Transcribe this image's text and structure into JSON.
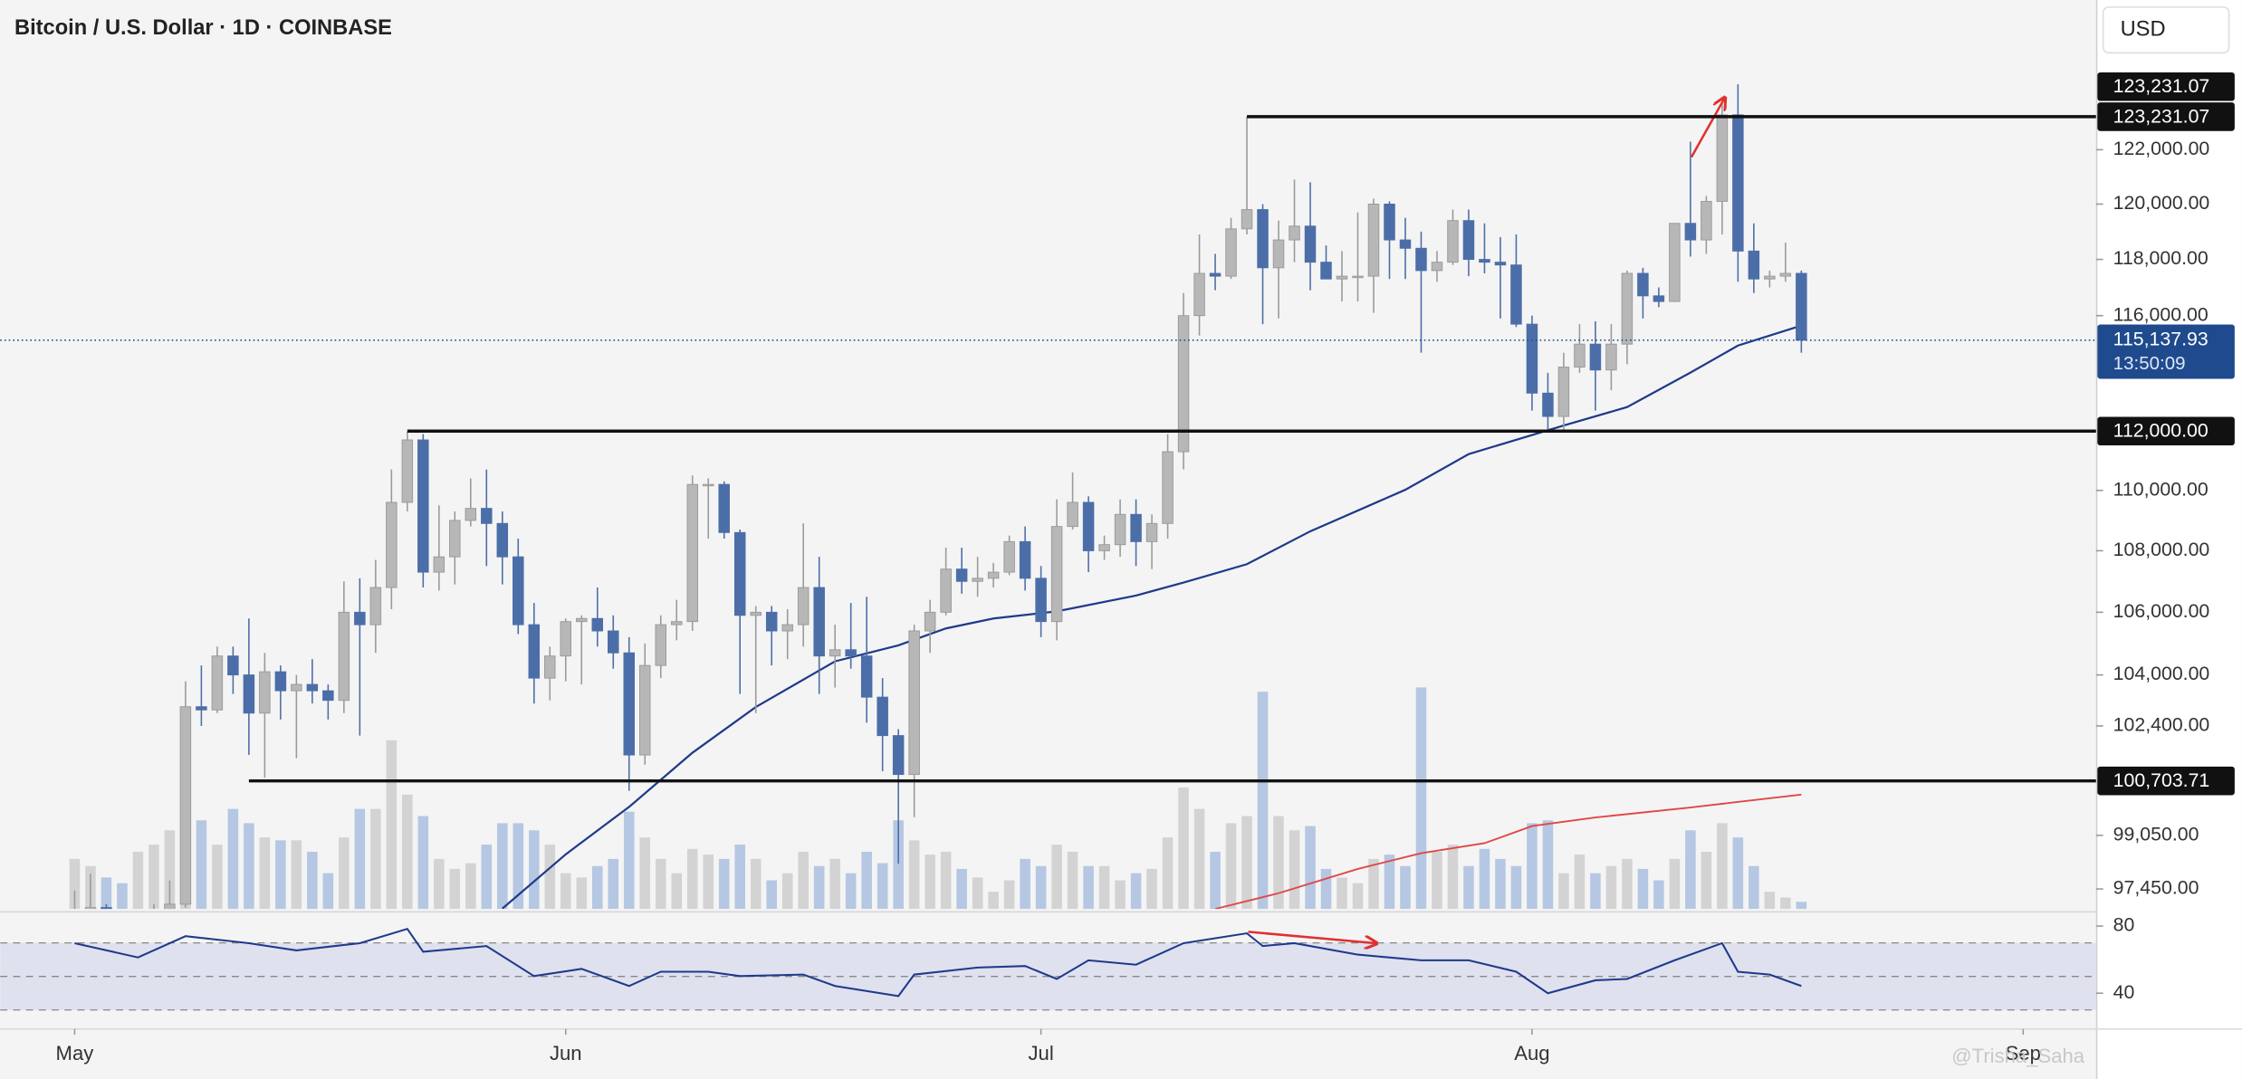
{
  "chart_data": {
    "type": "candlestick",
    "title": "Bitcoin / U.S. Dollar · 1D · COINBASE",
    "currency": "USD",
    "watermark": "@Trisha_Saha",
    "x": [
      0,
      1,
      2,
      3,
      4,
      5,
      6,
      7,
      8,
      9,
      10,
      11,
      12,
      13,
      14,
      15,
      16,
      17,
      18,
      19,
      20,
      21,
      22,
      23,
      24,
      25,
      26,
      27,
      28,
      29,
      30,
      31,
      32,
      33,
      34,
      35,
      36,
      37,
      38,
      39,
      40,
      41,
      42,
      43,
      44,
      45,
      46,
      47,
      48,
      49,
      50,
      51,
      52,
      53,
      54,
      55,
      56,
      57,
      58,
      59,
      60,
      61,
      62,
      63,
      64,
      65,
      66,
      67,
      68,
      69,
      70,
      71,
      72,
      73,
      74,
      75,
      76,
      77,
      78,
      79,
      80,
      81,
      82,
      83,
      84,
      85,
      86,
      87,
      88,
      89,
      90,
      91,
      92,
      93,
      94,
      95,
      96,
      97,
      98,
      99,
      100,
      101,
      102,
      103,
      104,
      105,
      106,
      107,
      108,
      109
    ],
    "open": [
      94200,
      96500,
      96900,
      95900,
      94300,
      94800,
      96800,
      97000,
      103000,
      102900,
      104600,
      104000,
      102800,
      104100,
      103500,
      103700,
      103500,
      103200,
      106000,
      105600,
      106800,
      109600,
      111700,
      107300,
      107800,
      109000,
      109400,
      108900,
      107800,
      105600,
      103900,
      104600,
      105700,
      105800,
      105400,
      104700,
      101500,
      104300,
      105600,
      105700,
      110200,
      110200,
      108600,
      105900,
      106000,
      105400,
      105600,
      106800,
      104600,
      104800,
      104600,
      103300,
      102100,
      100900,
      105400,
      106000,
      107400,
      107000,
      107100,
      107300,
      108300,
      107100,
      105700,
      108800,
      109600,
      108000,
      108200,
      109200,
      108300,
      108900,
      111300,
      116000,
      117500,
      117400,
      119100,
      119800,
      117700,
      118700,
      119200,
      117900,
      117300,
      117400,
      117400,
      120000,
      118700,
      118400,
      117600,
      117900,
      119400,
      118000,
      117900,
      117800,
      115700,
      113300,
      112500,
      114200,
      115000,
      114100,
      115000,
      117500,
      116700,
      116500,
      119300,
      118700,
      120100,
      123300,
      118300,
      117300,
      117400,
      117500
    ],
    "high": [
      97400,
      97900,
      97000,
      96300,
      95200,
      97000,
      97700,
      103800,
      104300,
      104900,
      104900,
      105800,
      104700,
      104300,
      104000,
      104500,
      103700,
      107000,
      107100,
      107700,
      110700,
      111980,
      111900,
      109500,
      109300,
      110400,
      110700,
      109300,
      108400,
      106300,
      104900,
      105800,
      105900,
      106800,
      105900,
      105200,
      105000,
      105900,
      106400,
      110500,
      110400,
      110300,
      108700,
      106200,
      106200,
      106100,
      108900,
      107800,
      105600,
      106300,
      106500,
      103900,
      102300,
      105600,
      106400,
      108100,
      108100,
      107800,
      107600,
      108500,
      108800,
      107500,
      109700,
      110600,
      109800,
      108500,
      109700,
      109700,
      109200,
      111900,
      116800,
      118900,
      118200,
      119500,
      123231.07,
      120000,
      119400,
      120900,
      120800,
      118500,
      118300,
      119700,
      120200,
      120100,
      119500,
      119000,
      118300,
      119800,
      119800,
      119300,
      118800,
      118900,
      116000,
      114000,
      114700,
      115700,
      115800,
      115700,
      117600,
      117700,
      117000,
      119300,
      122300,
      120300,
      123700,
      124450,
      119300,
      117600,
      118600,
      117600
    ],
    "low": [
      94100,
      96000,
      95700,
      94000,
      93500,
      93400,
      95800,
      96900,
      102400,
      102800,
      103400,
      101500,
      100800,
      102600,
      101400,
      103100,
      102600,
      102800,
      102100,
      104700,
      106100,
      109300,
      106800,
      106700,
      106900,
      108800,
      107500,
      106900,
      105300,
      103100,
      103200,
      103800,
      103700,
      104900,
      104200,
      100400,
      101200,
      103900,
      105100,
      105400,
      108400,
      108400,
      103400,
      102800,
      104300,
      104500,
      104900,
      103400,
      103600,
      104200,
      102500,
      101000,
      98200,
      99600,
      104700,
      105900,
      106600,
      106500,
      106800,
      107200,
      106700,
      105200,
      105100,
      108700,
      107300,
      107700,
      107800,
      107500,
      107400,
      108400,
      110700,
      115300,
      116900,
      117300,
      118900,
      115700,
      115900,
      117900,
      116900,
      117300,
      116500,
      116500,
      116100,
      117300,
      117300,
      114700,
      117200,
      117800,
      117400,
      117500,
      115900,
      115600,
      112700,
      112000,
      112000,
      114000,
      112700,
      113400,
      114300,
      115900,
      116300,
      116500,
      118100,
      118200,
      118900,
      117200,
      116800,
      117000,
      117200,
      114700
    ],
    "close": [
      96500,
      96900,
      95900,
      94300,
      94800,
      96800,
      97000,
      103000,
      102900,
      104600,
      104000,
      102800,
      104100,
      103500,
      103700,
      103500,
      103200,
      106000,
      105600,
      106800,
      109600,
      111700,
      107300,
      107800,
      109000,
      109400,
      108900,
      107800,
      105600,
      103900,
      104600,
      105700,
      105800,
      105400,
      104700,
      101500,
      104300,
      105600,
      105700,
      110200,
      110200,
      108600,
      105900,
      106000,
      105400,
      105600,
      106800,
      104600,
      104800,
      104600,
      103300,
      102100,
      100900,
      105400,
      106000,
      107400,
      107000,
      107100,
      107300,
      108300,
      107100,
      105700,
      108800,
      109600,
      108000,
      108200,
      109200,
      108300,
      108900,
      111300,
      116000,
      117500,
      117400,
      119100,
      119800,
      117700,
      118700,
      119200,
      117900,
      117300,
      117400,
      117400,
      120000,
      118700,
      118400,
      117600,
      117900,
      119400,
      118000,
      117900,
      117800,
      115700,
      113300,
      112500,
      114200,
      115000,
      114100,
      115000,
      117500,
      116700,
      116500,
      119300,
      118700,
      120100,
      123300,
      118300,
      117300,
      117400,
      117500,
      115137.93
    ],
    "up_color": "#b7b7b7",
    "down_color": "#4c6ea8",
    "log": true,
    "ylim": [
      96860,
      127680
    ],
    "xlim": [
      -4.7,
      127.6
    ],
    "yticks": [
      {
        "value": 97450,
        "label": "97,450.00"
      },
      {
        "value": 99050,
        "label": "99,050.00"
      },
      {
        "value": 102400,
        "label": "102,400.00"
      },
      {
        "value": 104000,
        "label": "104,000.00"
      },
      {
        "value": 106000,
        "label": "106,000.00"
      },
      {
        "value": 108000,
        "label": "108,000.00"
      },
      {
        "value": 110000,
        "label": "110,000.00"
      },
      {
        "value": 116000,
        "label": "116,000.00"
      },
      {
        "value": 118000,
        "label": "118,000.00"
      },
      {
        "value": 120000,
        "label": "120,000.00"
      },
      {
        "value": 122000,
        "label": "122,000.00"
      }
    ],
    "xticks": [
      {
        "value": 0,
        "label": "May"
      },
      {
        "value": 31,
        "label": "Jun"
      },
      {
        "value": 61,
        "label": "Jul"
      },
      {
        "value": 92,
        "label": "Aug"
      },
      {
        "value": 123,
        "label": "Sep"
      }
    ],
    "levels": [
      {
        "value": 123231.07,
        "label": "123,231.07",
        "from": 74
      },
      {
        "value": 112000,
        "label": "112,000.00",
        "from": 21
      },
      {
        "value": 100703.71,
        "label": "100,703.71",
        "from": 11
      }
    ],
    "high_label": {
      "value": 123231.07,
      "label": "123,231.07"
    },
    "last_price": {
      "value": 115137.93,
      "label": "115,137.93",
      "countdown": "13:50:09",
      "color": "#1f4b8e"
    },
    "ma": {
      "color": "#1e3a8a",
      "x": [
        27,
        31,
        35,
        39,
        43,
        48,
        52,
        55,
        58,
        62,
        67,
        70,
        74,
        78,
        84,
        88,
        94,
        98,
        102,
        105,
        109
      ],
      "values": [
        96870,
        98480,
        99910,
        101570,
        102990,
        104430,
        104940,
        105480,
        105800,
        106030,
        106540,
        106960,
        107560,
        108640,
        110020,
        111220,
        112190,
        112820,
        114010,
        114950,
        115650
      ]
    },
    "volume": {
      "lim": [
        0,
        636
      ],
      "up_color": "#d3d3d3",
      "down_color": "#b5c7e2",
      "values": [
        35,
        30,
        22,
        18,
        40,
        45,
        55,
        120,
        62,
        45,
        70,
        60,
        50,
        48,
        48,
        40,
        25,
        50,
        70,
        70,
        118,
        80,
        65,
        35,
        28,
        32,
        45,
        60,
        60,
        55,
        45,
        25,
        22,
        30,
        35,
        68,
        50,
        35,
        25,
        42,
        38,
        35,
        45,
        35,
        20,
        25,
        40,
        30,
        35,
        25,
        40,
        32,
        62,
        48,
        38,
        40,
        28,
        22,
        12,
        20,
        35,
        30,
        45,
        40,
        30,
        30,
        20,
        25,
        28,
        50,
        85,
        70,
        40,
        60,
        65,
        152,
        65,
        55,
        58,
        28,
        22,
        18,
        35,
        38,
        30,
        155,
        40,
        45,
        30,
        42,
        35,
        30,
        60,
        62,
        25,
        38,
        25,
        30,
        35,
        28,
        20,
        35,
        55,
        40,
        60,
        50,
        30,
        12,
        8,
        5
      ],
      "ma": {
        "color": "#e04848",
        "x": [
          72,
          76,
          81,
          85,
          89,
          92,
          96,
          102,
          109
        ],
        "values": [
          0,
          11,
          28,
          39,
          46,
          58,
          64,
          71,
          80
        ]
      }
    },
    "rsi": {
      "color": "#1e3a8a",
      "ylim": [
        20.4,
        86.8
      ],
      "yticks": [
        80,
        40
      ],
      "bands": [
        70,
        50,
        30
      ],
      "x": [
        0,
        4,
        7,
        11,
        14,
        18,
        21,
        22,
        26,
        29,
        32,
        35,
        37,
        40,
        42,
        46,
        48,
        52,
        53,
        57,
        60,
        62,
        64,
        67,
        70,
        74,
        75,
        77,
        81,
        85,
        88,
        91,
        93,
        96,
        98,
        101,
        104,
        105,
        107,
        109
      ],
      "values": [
        69.8,
        61.3,
        74,
        69.8,
        65.5,
        69.8,
        78.3,
        64.7,
        68.1,
        50.2,
        54.5,
        44.3,
        52.8,
        52.8,
        50.2,
        51.1,
        44.3,
        38.3,
        51.1,
        55.3,
        56.2,
        48.5,
        59.6,
        57,
        69.8,
        75.7,
        68.1,
        69.8,
        63,
        59.6,
        59.6,
        52.8,
        40,
        47.7,
        48.5,
        59.6,
        69.8,
        52.8,
        51.1,
        44.3
      ]
    }
  }
}
